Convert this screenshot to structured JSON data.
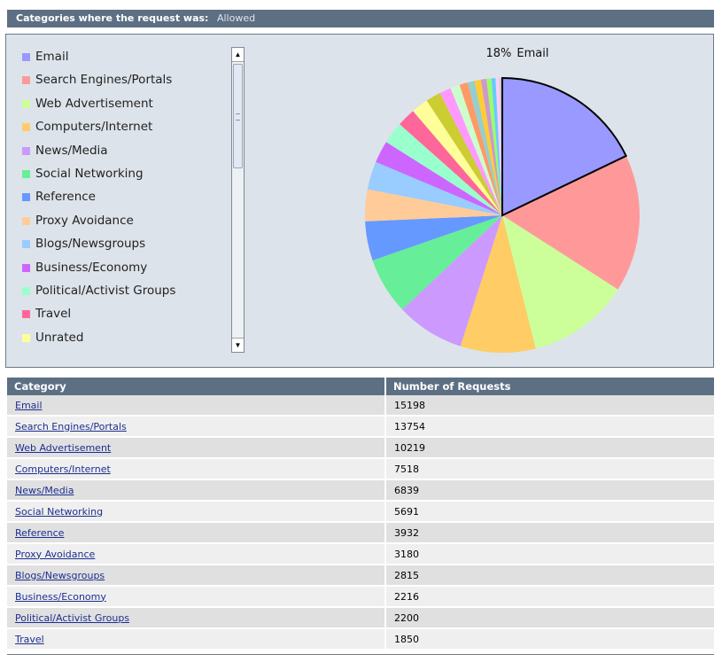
{
  "header": {
    "label": "Categories where the request was:",
    "value": "Allowed"
  },
  "colors": [
    "#9999ff",
    "#ff9999",
    "#ccff99",
    "#ffcc66",
    "#cc99ff",
    "#66ee99",
    "#6699ff",
    "#ffcc99",
    "#99ccff",
    "#cc66ff",
    "#99ffcc",
    "#ff6699",
    "#ffff99",
    "#cccc33",
    "#ff99ff",
    "#ccffcc",
    "#ff9966",
    "#99cccc",
    "#ffcc33",
    "#cc99cc",
    "#99ff66",
    "#66ccff",
    "#ffccff",
    "#cccccc"
  ],
  "chart_data": {
    "type": "pie",
    "highlight_label": {
      "percent": "18%",
      "category": "Email"
    },
    "legend_scroll": "scrollbar",
    "slices": [
      {
        "label": "Email",
        "value": 15198
      },
      {
        "label": "Search Engines/Portals",
        "value": 13754
      },
      {
        "label": "Web Advertisement",
        "value": 10219
      },
      {
        "label": "Computers/Internet",
        "value": 7518
      },
      {
        "label": "News/Media",
        "value": 6839
      },
      {
        "label": "Social Networking",
        "value": 5691
      },
      {
        "label": "Reference",
        "value": 3932
      },
      {
        "label": "Proxy Avoidance",
        "value": 3180
      },
      {
        "label": "Blogs/Newsgroups",
        "value": 2815
      },
      {
        "label": "Business/Economy",
        "value": 2216
      },
      {
        "label": "Political/Activist Groups",
        "value": 2200
      },
      {
        "label": "Travel",
        "value": 1850
      },
      {
        "label": "Unrated",
        "value": 1700
      },
      {
        "label": "",
        "value": 1500
      },
      {
        "label": "",
        "value": 1150
      },
      {
        "label": "",
        "value": 950
      },
      {
        "label": "",
        "value": 800
      },
      {
        "label": "",
        "value": 720
      },
      {
        "label": "",
        "value": 640
      },
      {
        "label": "",
        "value": 560
      },
      {
        "label": "",
        "value": 480
      },
      {
        "label": "",
        "value": 420
      },
      {
        "label": "",
        "value": 360
      },
      {
        "label": "",
        "value": 300
      }
    ]
  },
  "table": {
    "headers": {
      "category": "Category",
      "requests": "Number of Requests"
    },
    "rows": [
      {
        "category": "Email",
        "requests": "15198"
      },
      {
        "category": "Search Engines/Portals",
        "requests": "13754"
      },
      {
        "category": "Web Advertisement",
        "requests": "10219"
      },
      {
        "category": "Computers/Internet",
        "requests": "7518"
      },
      {
        "category": "News/Media",
        "requests": "6839"
      },
      {
        "category": "Social Networking",
        "requests": "5691"
      },
      {
        "category": "Reference",
        "requests": "3932"
      },
      {
        "category": "Proxy Avoidance",
        "requests": "3180"
      },
      {
        "category": "Blogs/Newsgroups",
        "requests": "2815"
      },
      {
        "category": "Business/Economy",
        "requests": "2216"
      },
      {
        "category": "Political/Activist Groups",
        "requests": "2200"
      },
      {
        "category": "Travel",
        "requests": "1850"
      }
    ]
  }
}
